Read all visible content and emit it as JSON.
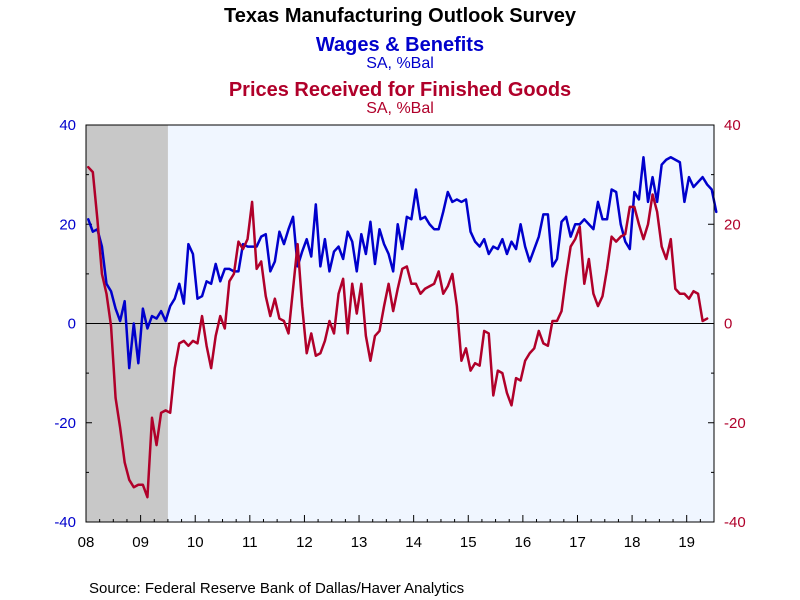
{
  "header": {
    "title": "Texas Manufacturing Outlook Survey",
    "series1_title": "Wages & Benefits",
    "series1_sub": "SA, %Bal",
    "series2_title": "Prices Received for Finished Goods",
    "series2_sub": "SA, %Bal"
  },
  "source": "Source:  Federal Reserve Bank of Dallas/Haver Analytics",
  "colors": {
    "series1": "#0000CC",
    "series2": "#B0002A",
    "plot_bg": "#F0F6FF",
    "recession": "#C8C8C8"
  },
  "chart_data": {
    "type": "line",
    "x_start": "2008-01",
    "x_end": "2019-06",
    "frequency": "monthly",
    "x_tick_labels": [
      "08",
      "09",
      "10",
      "11",
      "12",
      "13",
      "14",
      "15",
      "16",
      "17",
      "18",
      "19"
    ],
    "ylim_left": [
      -40,
      40
    ],
    "ylim_right": [
      -40,
      40
    ],
    "y_ticks_left": [
      "40",
      "20",
      "0",
      "-20",
      "-40"
    ],
    "y_ticks_right": [
      "40",
      "20",
      "0",
      "-20",
      "-40"
    ],
    "recession_shading": {
      "start": "2008-01",
      "end": "2009-06"
    },
    "zero_line": true,
    "series": [
      {
        "name": "Wages & Benefits",
        "values": [
          21.0,
          18.5,
          19.0,
          15.5,
          8.0,
          6.5,
          3.0,
          0.5,
          4.5,
          -9.0,
          0.0,
          -8.0,
          3.0,
          -1.0,
          1.5,
          1.0,
          2.5,
          0.5,
          3.5,
          5.0,
          8.0,
          4.0,
          16.0,
          14.0,
          5.0,
          5.5,
          8.5,
          8.0,
          12.0,
          8.5,
          11.0,
          11.0,
          10.5,
          10.5,
          16.0,
          15.5,
          15.5,
          15.5,
          17.5,
          18.0,
          10.5,
          12.5,
          18.5,
          16.0,
          19.0,
          21.5,
          11.5,
          14.5,
          17.0,
          13.5,
          24.0,
          11.5,
          17.0,
          10.5,
          14.5,
          15.5,
          13.0,
          18.5,
          16.5,
          10.5,
          18.0,
          14.0,
          20.5,
          12.0,
          19.0,
          16.0,
          14.0,
          10.5,
          20.0,
          15.0,
          21.5,
          21.0,
          27.0,
          21.0,
          21.5,
          20.0,
          19.0,
          19.0,
          22.5,
          26.5,
          24.5,
          25.0,
          24.5,
          25.0,
          18.5,
          16.5,
          15.5,
          17.0,
          14.0,
          15.5,
          15.0,
          17.0,
          14.0,
          16.5,
          15.0,
          20.0,
          15.5,
          12.5,
          15.0,
          17.5,
          22.0,
          22.0,
          11.5,
          13.0,
          20.5,
          21.5,
          17.5,
          20.0,
          20.0,
          21.0,
          20.0,
          19.0,
          24.5,
          21.0,
          21.0,
          27.0,
          26.5,
          20.0,
          16.5,
          15.0,
          26.5,
          25.0,
          33.5,
          24.5,
          29.5,
          24.5,
          32.0,
          33.0,
          33.5,
          33.0,
          32.5,
          24.5,
          29.5,
          27.5,
          28.5,
          29.5,
          28.0,
          27.0,
          22.5
        ]
      },
      {
        "name": "Prices Received for Finished Goods",
        "values": [
          31.5,
          30.5,
          21.0,
          10.0,
          6.0,
          -0.5,
          -15.0,
          -21.0,
          -28.0,
          -31.5,
          -33.0,
          -32.5,
          -32.5,
          -35.0,
          -19.0,
          -24.5,
          -18.0,
          -17.5,
          -18.0,
          -9.0,
          -4.0,
          -3.5,
          -4.5,
          -3.5,
          -4.0,
          1.5,
          -4.5,
          -9.0,
          -2.5,
          1.5,
          -1.0,
          8.5,
          10.0,
          16.5,
          15.0,
          17.0,
          24.5,
          11.0,
          12.5,
          5.5,
          1.5,
          5.0,
          1.0,
          0.5,
          -2.0,
          7.0,
          16.0,
          3.5,
          -6.0,
          -2.0,
          -6.5,
          -6.0,
          -3.5,
          0.5,
          -2.0,
          6.0,
          9.0,
          -2.0,
          8.0,
          2.0,
          8.0,
          -2.5,
          -7.5,
          -2.5,
          -1.5,
          3.5,
          8.0,
          2.5,
          7.0,
          11.0,
          11.5,
          8.0,
          8.0,
          6.0,
          7.0,
          7.5,
          8.0,
          10.5,
          6.0,
          7.5,
          10.0,
          3.5,
          -7.5,
          -5.0,
          -9.5,
          -8.0,
          -8.5,
          -1.5,
          -2.0,
          -14.5,
          -9.5,
          -10.0,
          -14.0,
          -16.5,
          -11.0,
          -11.5,
          -7.5,
          -6.0,
          -5.0,
          -1.5,
          -4.0,
          -4.5,
          0.5,
          0.5,
          2.5,
          9.5,
          15.5,
          17.0,
          19.5,
          8.0,
          13.0,
          6.0,
          3.5,
          5.5,
          11.0,
          17.5,
          16.5,
          17.5,
          18.0,
          23.5,
          23.5,
          20.0,
          17.0,
          20.0,
          26.0,
          22.5,
          15.5,
          13.0,
          17.0,
          7.0,
          6.0,
          6.0,
          5.0,
          6.5,
          6.0,
          0.5,
          1.0
        ]
      }
    ]
  }
}
